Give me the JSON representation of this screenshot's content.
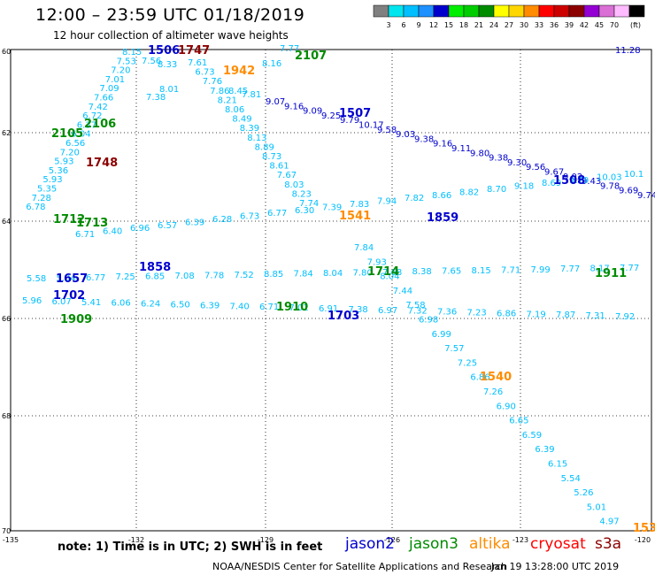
{
  "title": "12:00  –  23:59  UTC  01/18/2019",
  "subtitle": "12 hour collection of altimeter wave heights",
  "legend": {
    "unit": "(ft)",
    "labels": [
      "3",
      "6",
      "9",
      "12",
      "15",
      "18",
      "21",
      "24",
      "27",
      "30",
      "33",
      "36",
      "39",
      "42",
      "45",
      "70"
    ],
    "colors": [
      "#808080",
      "#00e5ee",
      "#00bfff",
      "#1e90ff",
      "#0000cd",
      "#00ee00",
      "#00cd00",
      "#008b00",
      "#ffff00",
      "#ffd700",
      "#ff8c00",
      "#ff0000",
      "#cd0000",
      "#8b0000",
      "#9400d3",
      "#da70d6",
      "#ffbbff",
      "#000000"
    ]
  },
  "axes": {
    "lon_labels": [
      "-135",
      "-132",
      "-129",
      "-126",
      "-123",
      "-120"
    ],
    "lat_labels": [
      "60",
      "62",
      "64",
      "66",
      "68",
      "70"
    ]
  },
  "note": "note:  1)  Time is in UTC;  2)  SWH is in feet",
  "satellites": [
    {
      "name": "jason2",
      "color": "#0000cd"
    },
    {
      "name": "jason3",
      "color": "#008b00"
    },
    {
      "name": "altika",
      "color": "#ff8c00"
    },
    {
      "name": "cryosat",
      "color": "#ff0000"
    },
    {
      "name": "s3a",
      "color": "#8b0000"
    }
  ],
  "credit": "NOAA/NESDIS Center for Satellite Applications and Research",
  "stamp": "Jan 19 13:28:00 UTC 2019",
  "track_times": [
    {
      "t": "1506",
      "color": "#0000cd"
    },
    {
      "t": "1747",
      "color": "#8b0000"
    },
    {
      "t": "1942",
      "color": "#ff8c00"
    },
    {
      "t": "2107",
      "color": "#008b00"
    },
    {
      "t": "1507",
      "color": "#0000cd"
    },
    {
      "t": "2106",
      "color": "#008b00"
    },
    {
      "t": "2105",
      "color": "#008b00"
    },
    {
      "t": "1748",
      "color": "#8b0000"
    },
    {
      "t": "1508",
      "color": "#0000cd"
    },
    {
      "t": "1541",
      "color": "#ff8c00"
    },
    {
      "t": "1859",
      "color": "#0000cd"
    },
    {
      "t": "1712",
      "color": "#008b00"
    },
    {
      "t": "1713",
      "color": "#008b00"
    },
    {
      "t": "1858",
      "color": "#0000cd"
    },
    {
      "t": "1657",
      "color": "#0000cd"
    },
    {
      "t": "1714",
      "color": "#008b00"
    },
    {
      "t": "1911",
      "color": "#008b00"
    },
    {
      "t": "1702",
      "color": "#0000cd"
    },
    {
      "t": "1910",
      "color": "#008b00"
    },
    {
      "t": "1703",
      "color": "#0000cd"
    },
    {
      "t": "1909",
      "color": "#008b00"
    },
    {
      "t": "1540",
      "color": "#ff8c00"
    },
    {
      "t": "153",
      "color": "#ff8c00"
    }
  ],
  "swh_tracks": {
    "color_cyan": "#00bfff",
    "color_blue": "#0000cd",
    "descending_cyan": [
      "8.15",
      "7.53",
      "7.20",
      "7.01",
      "7.09",
      "7.66",
      "7.42",
      "6.72",
      "6.37",
      "6.04",
      "6.56",
      "7.20",
      "5.93",
      "5.36",
      "5.93",
      "5.35",
      "7.28",
      "6.78"
    ],
    "descending_cyan2": [
      "7.61",
      "6.73",
      "7.76",
      "7.86",
      "8.21",
      "8.06",
      "8.49",
      "8.39",
      "8.13",
      "8.89",
      "8.73",
      "8.61",
      "7.67",
      "8.03",
      "8.23",
      "7.74"
    ],
    "descending_blue": [
      "9.07",
      "9.16",
      "9.09",
      "9.25",
      "9.79",
      "10.17",
      "9.58",
      "9.03",
      "9.38",
      "9.16",
      "9.11",
      "9.80",
      "9.38",
      "9.30",
      "9.56",
      "9.67",
      "9.02",
      "9.43",
      "9.78",
      "9.69",
      "9.74"
    ],
    "long_cyan": [
      "7.84",
      "7.93",
      "8.04",
      "7.44",
      "7.58",
      "6.98",
      "6.99",
      "7.57",
      "7.25",
      "6.86",
      "7.26",
      "6.90",
      "6.65",
      "6.59",
      "6.39",
      "6.15",
      "5.54",
      "5.26",
      "5.01",
      "4.97"
    ],
    "row64": [
      "6.71",
      "6.40",
      "6.96",
      "6.57",
      "6.39",
      "6.28",
      "6.73",
      "6.77",
      "6.30",
      "7.39",
      "7.83",
      "7.94",
      "7.82",
      "8.66",
      "8.82",
      "8.70",
      "9.18",
      "8.69",
      "9.79",
      "10.03",
      "10.1"
    ],
    "row65": [
      "5.58",
      "5.84",
      "6.77",
      "7.25",
      "6.85",
      "7.08",
      "7.78",
      "7.52",
      "8.85",
      "7.84",
      "8.04",
      "7.80",
      "7.68",
      "8.38",
      "7.65",
      "8.15",
      "7.71",
      "7.99",
      "7.77",
      "8.17",
      "7.77"
    ],
    "row66": [
      "5.96",
      "6.07",
      "5.41",
      "6.06",
      "6.24",
      "6.50",
      "6.39",
      "7.40",
      "6.71",
      "7.02",
      "6.91",
      "7.38",
      "6.97",
      "7.32",
      "7.36",
      "7.23",
      "6.86",
      "7.19",
      "7.87",
      "7.31",
      "7.92"
    ],
    "row_top": [
      "11.28",
      "8.33",
      "7.56",
      "8.45",
      "7.81",
      "7.77",
      "8.16",
      "7.38",
      "8.01"
    ]
  }
}
